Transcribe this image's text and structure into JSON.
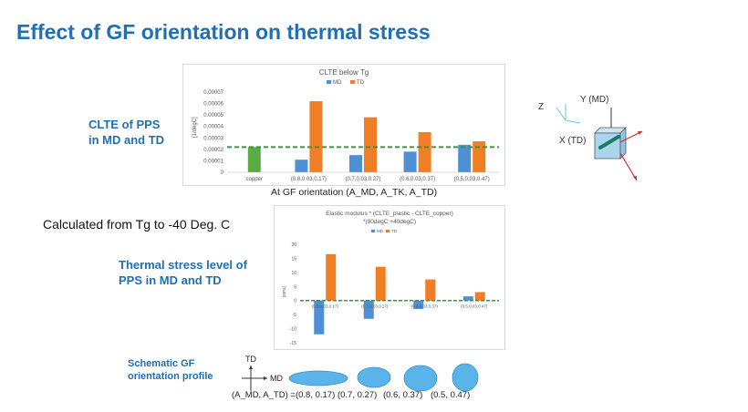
{
  "slide": {
    "title": "Effect of GF orientation on thermal stress",
    "label_clte": [
      "CLTE of PPS",
      "in MD and TD"
    ],
    "label_calc": "Calculated from Tg to -40 Deg. C",
    "label_stress": [
      "Thermal stress level of",
      "PPS in MD and TD"
    ],
    "label_schematic": [
      "Schematic GF",
      "orientation profile"
    ],
    "chart1_xcaption": "At GF orientation  (A_MD, A_TK, A_TD)",
    "orientation_caption": "(A_MD, A_TD) = ",
    "orientations": [
      "(0.8, 0.17)",
      "(0.7, 0.27)",
      "(0.6, 0.37)",
      "(0.5,  0.47)"
    ],
    "schematic_md": "MD",
    "schematic_td": "TD",
    "axes": {
      "x_label": "X (TD)",
      "y_label": "Y (MD)",
      "z_label": "Z"
    }
  },
  "colors": {
    "md": "#4e8fd6",
    "td": "#f07e26",
    "copper": "#5aab46",
    "ref_line": "#2e9e3a",
    "title": "#1f6fb2"
  },
  "chart_data": [
    {
      "type": "bar",
      "title": "CLTE below Tg",
      "ylabel": "[1/degC]",
      "categories": [
        "copper",
        "(0.8,0.03,0.17)",
        "(0.7,0.03,0.27)",
        "(0.6,0.03,0.37)",
        "(0.5,0.03,0.47)"
      ],
      "series": [
        {
          "name": "MD",
          "values": [
            null,
            1.1e-05,
            1.5e-05,
            1.8e-05,
            2.4e-05
          ]
        },
        {
          "name": "TD",
          "values": [
            null,
            6.2e-05,
            4.8e-05,
            3.5e-05,
            2.7e-05
          ]
        },
        {
          "name": "",
          "values": [
            2.2e-05,
            null,
            null,
            null,
            null
          ]
        }
      ],
      "reference_line": 2.2e-05,
      "ylim": [
        0,
        7e-05
      ],
      "yticks": [
        "0",
        "0.00001",
        "0.00002",
        "0.00003",
        "0.00004",
        "0.00005",
        "0.00006",
        "0.00007"
      ],
      "legend": "top"
    },
    {
      "type": "bar",
      "title": "Elastic modulus * (CLTE_plastic - CLTE_copper)",
      "subtitle": "*(90degC +40degC)",
      "ylabel": "[MPa]",
      "categories": [
        "(0.8,0.03,0.17)",
        "(0.7,0.03,0.27)",
        "(0.6,0.03,0.37)",
        "(0.5,0.03,0.47)"
      ],
      "series": [
        {
          "name": "MD",
          "values": [
            -12,
            -6.5,
            -3,
            1.5
          ]
        },
        {
          "name": "TD",
          "values": [
            16.5,
            12,
            7.5,
            3
          ]
        }
      ],
      "reference_line": 0,
      "ylim": [
        -15,
        20
      ],
      "yticks": [
        "-15",
        "-10",
        "-5",
        "0",
        "5",
        "10",
        "15",
        "20"
      ],
      "legend": "top"
    }
  ]
}
